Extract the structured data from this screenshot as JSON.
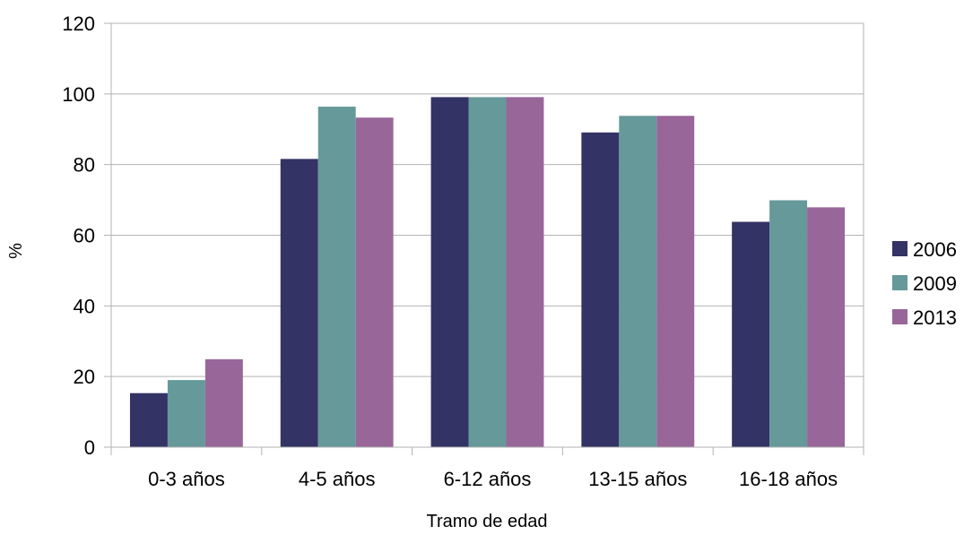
{
  "chart_data": {
    "type": "bar",
    "title": "",
    "xlabel": "Tramo de edad",
    "ylabel": "%",
    "ylim": [
      0,
      120
    ],
    "yticks": [
      0,
      20,
      40,
      60,
      80,
      100,
      120
    ],
    "grid": true,
    "legend_position": "right",
    "categories": [
      "0-3 años",
      "4-5 años",
      "6-12 años",
      "13-15 años",
      "16-18 años"
    ],
    "series": [
      {
        "name": "2006",
        "color": "#333366",
        "values": [
          15.3,
          81.6,
          99.1,
          89.1,
          63.8
        ]
      },
      {
        "name": "2009",
        "color": "#669999",
        "values": [
          19.0,
          96.4,
          99.1,
          93.8,
          69.9
        ]
      },
      {
        "name": "2013",
        "color": "#996699",
        "values": [
          24.9,
          93.3,
          99.1,
          93.8,
          67.9
        ]
      }
    ]
  }
}
